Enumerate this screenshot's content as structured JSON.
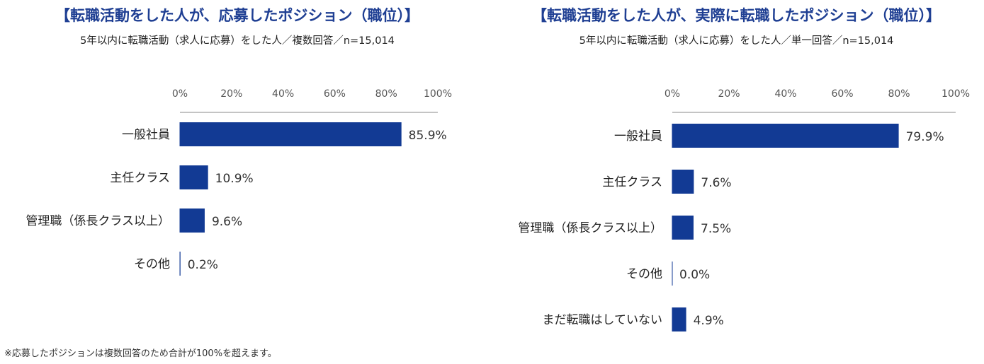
{
  "chart_data": [
    {
      "type": "bar",
      "orientation": "horizontal",
      "title": "【転職活動をした人が、応募したポジション（職位）】",
      "subtitle": "5年以内に転職活動（求人に応募）をした人／複数回答／n=15,014",
      "categories": [
        "一般社員",
        "主任クラス",
        "管理職（係長クラス以上）",
        "その他"
      ],
      "values": [
        85.9,
        10.9,
        9.6,
        0.2
      ],
      "value_labels": [
        "85.9%",
        "10.9%",
        "9.6%",
        "0.2%"
      ],
      "xlim": [
        0,
        100
      ],
      "ticks": [
        "0%",
        "20%",
        "40%",
        "60%",
        "80%",
        "100%"
      ],
      "bar_color": "#123a94",
      "grid": false
    },
    {
      "type": "bar",
      "orientation": "horizontal",
      "title": "【転職活動をした人が、実際に転職したポジション（職位）】",
      "subtitle": "5年以内に転職活動（求人に応募）をした人／単一回答／n=15,014",
      "categories": [
        "一般社員",
        "主任クラス",
        "管理職（係長クラス以上）",
        "その他",
        "まだ転職はしていない"
      ],
      "values": [
        79.9,
        7.6,
        7.5,
        0.0,
        4.9
      ],
      "value_labels": [
        "79.9%",
        "7.6%",
        "7.5%",
        "0.0%",
        "4.9%"
      ],
      "xlim": [
        0,
        100
      ],
      "ticks": [
        "0%",
        "20%",
        "40%",
        "60%",
        "80%",
        "100%"
      ],
      "bar_color": "#123a94",
      "grid": false
    }
  ],
  "footnote": "※応募したポジションは複数回答のため合計が100%を超えます。",
  "colors": {
    "title": "#1f3f93",
    "bar": "#123a94",
    "axis": "#888888"
  }
}
